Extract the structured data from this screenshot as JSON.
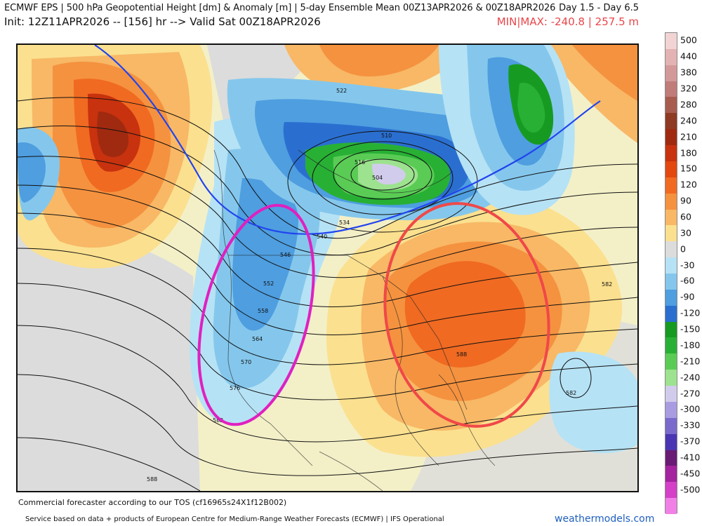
{
  "header": {
    "title": "ECMWF EPS | 500 hPa Geopotential Height [dm] & Anomaly [m] | 5-day Ensemble Mean 00Z13APR2026 & 00Z18APR2026",
    "day_range": "Day 1.5 - Day 6.5",
    "init": "Init: 12Z11APR2026 -- [156] hr --> Valid Sat 00Z18APR2026",
    "minmax": "MIN|MAX: -240.8 | 257.5 m"
  },
  "map": {
    "region": "North America",
    "contour_labels": [
      "522",
      "510",
      "504",
      "516",
      "534",
      "540",
      "546",
      "552",
      "558",
      "564",
      "570",
      "576",
      "582",
      "588",
      "582",
      "588",
      "582"
    ],
    "annotations": [
      {
        "shape": "ellipse",
        "color": "#e020c0",
        "meaning": "western trough"
      },
      {
        "shape": "ellipse",
        "color": "#f04848",
        "meaning": "eastern ridge"
      }
    ],
    "colors": {
      "land_neutral": "#d9d9d9",
      "ocean_neutral": "#f3f0c8",
      "trough_line": "#2244ee"
    }
  },
  "colorbar": {
    "labels": [
      "500",
      "440",
      "380",
      "320",
      "280",
      "240",
      "210",
      "180",
      "150",
      "120",
      "90",
      "60",
      "30",
      "0",
      "-30",
      "-60",
      "-90",
      "-120",
      "-150",
      "-180",
      "-210",
      "-240",
      "-270",
      "-300",
      "-330",
      "-370",
      "-410",
      "-450",
      "-500"
    ],
    "colors": [
      "#f2d4d4",
      "#e3b3b3",
      "#d39999",
      "#c07c78",
      "#a85c50",
      "#8f3a22",
      "#a02a10",
      "#c8320e",
      "#e2480f",
      "#f06a22",
      "#f5923f",
      "#f8b866",
      "#fbe08f",
      "#dcdcdc",
      "#b6e2f5",
      "#85c7ec",
      "#4e9ee0",
      "#2a6fd0",
      "#179a22",
      "#28b035",
      "#5acc55",
      "#9de28f",
      "#d2ccec",
      "#a99ce0",
      "#7a6acc",
      "#4a36b2",
      "#6a1b74",
      "#a4239e",
      "#d540c8",
      "#f080e6"
    ]
  },
  "footer": {
    "tos": "Commercial forecaster according to our TOS (cf16965s24X1f12B002)",
    "service": "Service based on data + products of European Centre for Medium-Range Weather Forecasts (ECMWF) | IFS Operational",
    "brand": "weathermodels.com"
  }
}
